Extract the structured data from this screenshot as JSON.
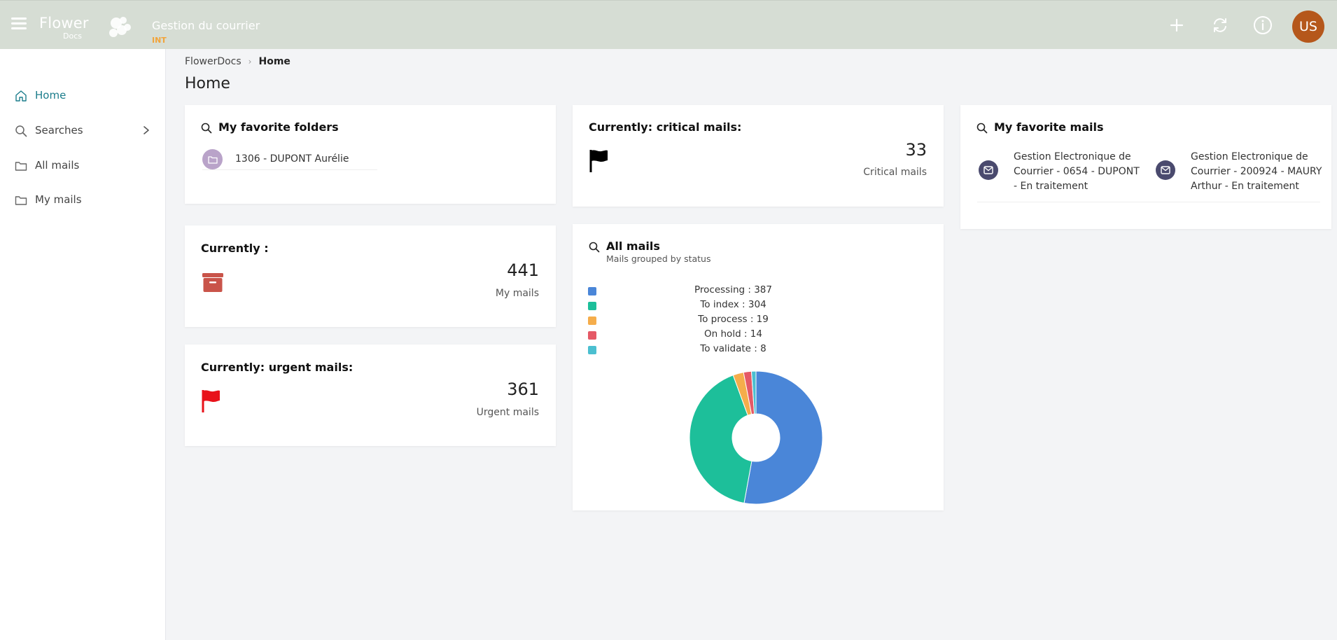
{
  "app": {
    "logo_main": "Flower",
    "logo_sub": "Docs",
    "title": "Gestion du courrier",
    "env": "INT"
  },
  "header": {
    "avatar_initials": "US"
  },
  "sidebar": {
    "items": [
      {
        "label": "Home"
      },
      {
        "label": "Searches"
      },
      {
        "label": "All mails"
      },
      {
        "label": "My mails"
      }
    ]
  },
  "breadcrumb": {
    "root": "FlowerDocs",
    "current": "Home"
  },
  "page": {
    "title": "Home"
  },
  "fav_folders": {
    "title": "My favorite folders",
    "items": [
      {
        "label": "1306 - DUPONT Aurélie"
      }
    ]
  },
  "critical": {
    "title": "Currently: critical mails:",
    "count": "33",
    "label": "Critical mails"
  },
  "fav_mails": {
    "title": "My favorite mails",
    "items": [
      {
        "line1": "Gestion Electronique de",
        "line2": "Courrier - 0654 - DUPONT",
        "line3": "- En traitement"
      },
      {
        "line1": "Gestion Electronique de",
        "line2": "Courrier - 200924 - MAURY",
        "line3": "Arthur - En traitement"
      }
    ]
  },
  "currently": {
    "title": "Currently :",
    "count": "441",
    "label": "My mails"
  },
  "urgent": {
    "title": "Currently: urgent mails:",
    "count": "361",
    "label": "Urgent mails"
  },
  "all_mails": {
    "title": "All mails",
    "subtitle": "Mails grouped by status",
    "legend": [
      {
        "text": "Processing : 387"
      },
      {
        "text": "To index : 304"
      },
      {
        "text": "To process : 19"
      },
      {
        "text": "On hold : 14"
      },
      {
        "text": "To validate : 8"
      }
    ]
  },
  "colors": {
    "topbar": "#d6ddd4",
    "accent": "#1c7d8c",
    "env": "#f2a43a",
    "avatar": "#b5571b",
    "archive": "#c9544a",
    "urgent_flag": "#e8121a"
  },
  "chart_data": {
    "type": "pie",
    "title": "All mails",
    "categories": [
      "Processing",
      "To index",
      "To process",
      "On hold",
      "To validate"
    ],
    "values": [
      387,
      304,
      19,
      14,
      8
    ],
    "colors": [
      "#4a86d8",
      "#1dbf9a",
      "#f5ad4b",
      "#e55966",
      "#4bbfd0"
    ],
    "donut": true,
    "legend": "top"
  }
}
